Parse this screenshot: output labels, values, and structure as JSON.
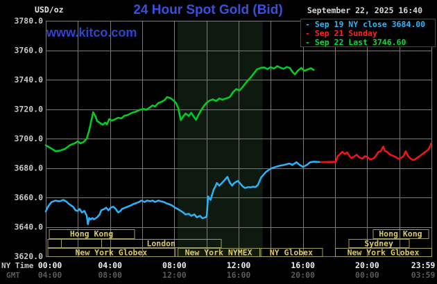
{
  "header": {
    "unit_label": "USD/oz",
    "title": "24 Hour Spot Gold (Bid)",
    "datetime": "September 22, 2025 16:40",
    "watermark": "www.kitco.com"
  },
  "legend": {
    "items": [
      {
        "label": "- Sep 19 NY close 3684.00",
        "color": "#29b6ff"
      },
      {
        "label": "- Sep 21 Sunday",
        "color": "#ff2222"
      },
      {
        "label": "- Sep 22 Last 3746.60",
        "color": "#00e033"
      }
    ]
  },
  "axes": {
    "ny_time_label": "NY Time",
    "gmt_label": "GMT",
    "tick_hours": [
      0,
      4,
      8,
      12,
      16,
      20,
      24
    ],
    "ny_times": [
      "00:00",
      "04:00",
      "08:00",
      "12:00",
      "16:00",
      "20:00",
      "23:59"
    ],
    "gmt_times": [
      "04:00",
      "08:00",
      "12:00",
      "16:00",
      "20:00",
      "00:00",
      "03:59"
    ],
    "y_tick_labels": [
      "3780.0",
      "3760.0",
      "3740.0",
      "3720.0",
      "3700.0",
      "3680.0",
      "3660.0",
      "3640.0",
      "3620.0"
    ]
  },
  "chart_data": {
    "type": "line",
    "title": "24 Hour Spot Gold (Bid)",
    "x_unit": "hours, NY time",
    "xlim": [
      0,
      24
    ],
    "ylim": [
      3620,
      3780
    ],
    "y_step": 20,
    "x_grid_step_hours": 2,
    "grid": true,
    "colors": {
      "grid": "#7a7a7a",
      "band": "#0e1a0f",
      "session": "#a39e56",
      "session_text": "#d9c868"
    },
    "shaded_band_hours": [
      8.2,
      13.5
    ],
    "sessions": [
      {
        "row": 1,
        "label": "Hong Kong",
        "start": 0.2,
        "end": 5.5
      },
      {
        "row": 1,
        "label": "Hong Kong",
        "start": 20.35,
        "end": 23.8
      },
      {
        "row": 2,
        "label": "",
        "start": 0.1,
        "end": 0.95
      },
      {
        "row": 2,
        "label": "",
        "start": 0.95,
        "end": 3.45
      },
      {
        "row": 2,
        "label": "London",
        "start": 3.45,
        "end": 10.9
      },
      {
        "row": 2,
        "label": "Sydney",
        "start": 18.85,
        "end": 22.6
      },
      {
        "row": 3,
        "label": "New York Globex",
        "start": 0.1,
        "end": 8.05
      },
      {
        "row": 3,
        "label": "New York NYMEX",
        "start": 8.2,
        "end": 13.3
      },
      {
        "row": 3,
        "label": "NY Globex",
        "start": 13.35,
        "end": 17.2
      },
      {
        "row": 3,
        "label": "New York Globex",
        "start": 18.0,
        "end": 24.0
      }
    ],
    "series": [
      {
        "name": "Sep 19 NY close 3684.00",
        "color": "#2eb0f5",
        "points": [
          [
            0,
            3650.5
          ],
          [
            0.15,
            3654
          ],
          [
            0.35,
            3656.8
          ],
          [
            0.6,
            3657.8
          ],
          [
            0.85,
            3657.3
          ],
          [
            1.1,
            3658.3
          ],
          [
            1.3,
            3657
          ],
          [
            1.45,
            3655.5
          ],
          [
            1.7,
            3653.6
          ],
          [
            1.85,
            3651.2
          ],
          [
            2.0,
            3650.8
          ],
          [
            2.1,
            3652.2
          ],
          [
            2.25,
            3649.8
          ],
          [
            2.4,
            3650.8
          ],
          [
            2.55,
            3647.5
          ],
          [
            2.62,
            3641.8
          ],
          [
            2.7,
            3646
          ],
          [
            2.8,
            3645.1
          ],
          [
            2.9,
            3646
          ],
          [
            3.0,
            3645.1
          ],
          [
            3.2,
            3646.5
          ],
          [
            3.35,
            3648.4
          ],
          [
            3.45,
            3651.2
          ],
          [
            3.65,
            3652.2
          ],
          [
            3.75,
            3653.1
          ],
          [
            3.9,
            3651.2
          ],
          [
            4.05,
            3653.1
          ],
          [
            4.2,
            3653.7
          ],
          [
            4.35,
            3652.2
          ],
          [
            4.5,
            3649.8
          ],
          [
            4.65,
            3650.8
          ],
          [
            4.75,
            3652.2
          ],
          [
            4.95,
            3653.1
          ],
          [
            5.1,
            3653.7
          ],
          [
            5.3,
            3654.6
          ],
          [
            5.45,
            3655.5
          ],
          [
            5.6,
            3656
          ],
          [
            5.8,
            3656.9
          ],
          [
            5.95,
            3657.9
          ],
          [
            6.15,
            3656.9
          ],
          [
            6.3,
            3657.9
          ],
          [
            6.5,
            3657.4
          ],
          [
            6.65,
            3657.9
          ],
          [
            6.8,
            3656.9
          ],
          [
            7.0,
            3657.9
          ],
          [
            7.15,
            3657.4
          ],
          [
            7.35,
            3656.9
          ],
          [
            7.5,
            3656
          ],
          [
            7.7,
            3655.3
          ],
          [
            7.85,
            3654.6
          ],
          [
            8.05,
            3653
          ],
          [
            8.2,
            3652.2
          ],
          [
            8.4,
            3650.8
          ],
          [
            8.55,
            3649.8
          ],
          [
            8.7,
            3648.4
          ],
          [
            8.9,
            3648.9
          ],
          [
            9.05,
            3647.5
          ],
          [
            9.25,
            3648.4
          ],
          [
            9.4,
            3646.5
          ],
          [
            9.6,
            3647.5
          ],
          [
            9.75,
            3645.8
          ],
          [
            9.95,
            3646.5
          ],
          [
            10.02,
            3647.5
          ],
          [
            10.1,
            3660.7
          ],
          [
            10.25,
            3658.3
          ],
          [
            10.45,
            3665.4
          ],
          [
            10.55,
            3667.3
          ],
          [
            10.65,
            3669.8
          ],
          [
            10.8,
            3668
          ],
          [
            11.0,
            3670.2
          ],
          [
            11.15,
            3672
          ],
          [
            11.3,
            3674
          ],
          [
            11.45,
            3670
          ],
          [
            11.6,
            3668
          ],
          [
            11.7,
            3669.5
          ],
          [
            11.85,
            3670.6
          ],
          [
            11.95,
            3671.2
          ],
          [
            12.1,
            3669.5
          ],
          [
            12.25,
            3667.5
          ],
          [
            12.4,
            3666.4
          ],
          [
            12.6,
            3667
          ],
          [
            12.75,
            3666.8
          ],
          [
            12.9,
            3667.3
          ],
          [
            13.05,
            3667
          ],
          [
            13.2,
            3668.5
          ],
          [
            13.4,
            3673.5
          ],
          [
            13.7,
            3677.3
          ],
          [
            14.0,
            3679.6
          ],
          [
            14.3,
            3680.7
          ],
          [
            14.55,
            3681.5
          ],
          [
            14.85,
            3682.1
          ],
          [
            15.15,
            3683
          ],
          [
            15.35,
            3682.1
          ],
          [
            15.6,
            3683.9
          ],
          [
            15.8,
            3682.1
          ],
          [
            16.0,
            3680.7
          ],
          [
            16.25,
            3682.1
          ],
          [
            16.45,
            3683.9
          ],
          [
            16.7,
            3684.3
          ],
          [
            17.1,
            3684.0
          ]
        ]
      },
      {
        "name": "Sep 21 Sunday",
        "color": "#f01414",
        "points": [
          [
            17.1,
            3684.0
          ],
          [
            18.05,
            3684.2
          ],
          [
            18.15,
            3687.8
          ],
          [
            18.3,
            3689.3
          ],
          [
            18.45,
            3691
          ],
          [
            18.6,
            3689.5
          ],
          [
            18.75,
            3690.6
          ],
          [
            18.88,
            3688.5
          ],
          [
            19.0,
            3686.8
          ],
          [
            19.15,
            3687.5
          ],
          [
            19.35,
            3689
          ],
          [
            19.5,
            3687.2
          ],
          [
            19.7,
            3686.4
          ],
          [
            19.85,
            3688
          ],
          [
            20.0,
            3687.6
          ],
          [
            20.2,
            3685.8
          ],
          [
            20.4,
            3686.5
          ],
          [
            20.55,
            3688.4
          ],
          [
            20.7,
            3690.8
          ],
          [
            20.85,
            3691.5
          ],
          [
            21.0,
            3694.6
          ],
          [
            21.1,
            3691.6
          ],
          [
            21.25,
            3690.8
          ],
          [
            21.4,
            3689.2
          ],
          [
            21.6,
            3688.3
          ],
          [
            21.75,
            3687.6
          ],
          [
            21.95,
            3686.2
          ],
          [
            22.1,
            3686.8
          ],
          [
            22.25,
            3688
          ],
          [
            22.4,
            3691.3
          ],
          [
            22.55,
            3688
          ],
          [
            22.7,
            3686.4
          ],
          [
            22.85,
            3685.3
          ],
          [
            23.0,
            3686
          ],
          [
            23.2,
            3687.6
          ],
          [
            23.35,
            3688.7
          ],
          [
            23.5,
            3690
          ],
          [
            23.7,
            3691.6
          ],
          [
            23.82,
            3692.8
          ],
          [
            23.9,
            3694.4
          ],
          [
            23.98,
            3696.6
          ]
        ]
      },
      {
        "name": "Sep 22 Last 3746.60",
        "color": "#00cc22",
        "points": [
          [
            0,
            3695.5
          ],
          [
            0.3,
            3693.5
          ],
          [
            0.6,
            3691.5
          ],
          [
            0.9,
            3691.8
          ],
          [
            1.2,
            3693
          ],
          [
            1.5,
            3695.5
          ],
          [
            1.8,
            3696.8
          ],
          [
            2.0,
            3698.1
          ],
          [
            2.15,
            3696.7
          ],
          [
            2.35,
            3697.6
          ],
          [
            2.55,
            3700
          ],
          [
            2.7,
            3705.6
          ],
          [
            2.85,
            3713
          ],
          [
            2.95,
            3717.9
          ],
          [
            3.1,
            3714.8
          ],
          [
            3.2,
            3711.8
          ],
          [
            3.4,
            3710.4
          ],
          [
            3.55,
            3709.4
          ],
          [
            3.7,
            3710.8
          ],
          [
            3.8,
            3709.6
          ],
          [
            3.95,
            3713.2
          ],
          [
            4.1,
            3712.2
          ],
          [
            4.3,
            3713
          ],
          [
            4.5,
            3714.1
          ],
          [
            4.7,
            3713.7
          ],
          [
            4.9,
            3715.5
          ],
          [
            5.1,
            3716
          ],
          [
            5.35,
            3717.4
          ],
          [
            5.6,
            3718.2
          ],
          [
            5.85,
            3719.5
          ],
          [
            6.1,
            3720.1
          ],
          [
            6.25,
            3719.5
          ],
          [
            6.45,
            3721
          ],
          [
            6.65,
            3722.5
          ],
          [
            6.8,
            3721.8
          ],
          [
            7.0,
            3724.2
          ],
          [
            7.2,
            3724.9
          ],
          [
            7.4,
            3726.2
          ],
          [
            7.55,
            3728.2
          ],
          [
            7.75,
            3727.5
          ],
          [
            7.95,
            3725.9
          ],
          [
            8.1,
            3724.2
          ],
          [
            8.25,
            3720.5
          ],
          [
            8.4,
            3712.5
          ],
          [
            8.55,
            3715
          ],
          [
            8.7,
            3717
          ],
          [
            8.9,
            3715.3
          ],
          [
            9.05,
            3717.5
          ],
          [
            9.2,
            3715
          ],
          [
            9.35,
            3712.7
          ],
          [
            9.5,
            3716
          ],
          [
            9.65,
            3719
          ],
          [
            9.85,
            3722.3
          ],
          [
            10.0,
            3724.3
          ],
          [
            10.2,
            3725.8
          ],
          [
            10.4,
            3726.6
          ],
          [
            10.6,
            3725.5
          ],
          [
            10.8,
            3727.2
          ],
          [
            11.0,
            3726.4
          ],
          [
            11.25,
            3727.4
          ],
          [
            11.45,
            3728.2
          ],
          [
            11.65,
            3731.5
          ],
          [
            11.85,
            3733.6
          ],
          [
            12.05,
            3732.6
          ],
          [
            12.25,
            3735
          ],
          [
            12.5,
            3738.6
          ],
          [
            12.75,
            3741.5
          ],
          [
            12.95,
            3744.3
          ],
          [
            13.15,
            3747
          ],
          [
            13.4,
            3748.1
          ],
          [
            13.6,
            3748.3
          ],
          [
            13.8,
            3747.2
          ],
          [
            14.0,
            3748.5
          ],
          [
            14.2,
            3747.6
          ],
          [
            14.4,
            3749.2
          ],
          [
            14.6,
            3748.2
          ],
          [
            14.8,
            3747.4
          ],
          [
            15.0,
            3748.6
          ],
          [
            15.2,
            3747.8
          ],
          [
            15.35,
            3745.3
          ],
          [
            15.5,
            3743.6
          ],
          [
            15.7,
            3746.3
          ],
          [
            15.9,
            3748
          ],
          [
            16.1,
            3746
          ],
          [
            16.3,
            3746.9
          ],
          [
            16.5,
            3747.8
          ],
          [
            16.67,
            3746.6
          ]
        ]
      }
    ]
  }
}
